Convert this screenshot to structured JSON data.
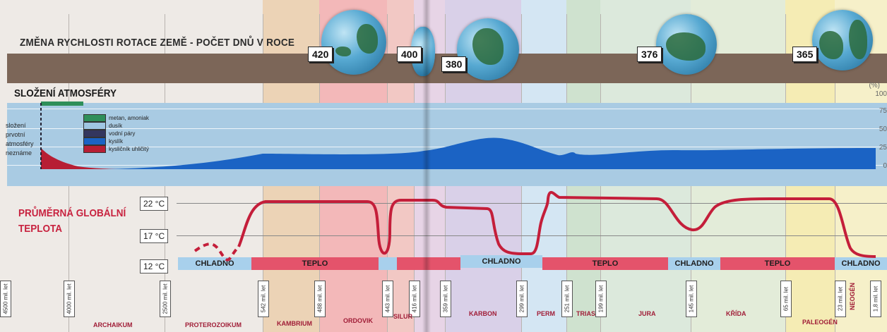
{
  "rotation": {
    "title": "ZMĚNA RYCHLOSTI ROTACE ZEMĚ - POČET DNŮ V ROCE",
    "values": [
      "420",
      "400",
      "380",
      "376",
      "365"
    ]
  },
  "atmosphere": {
    "title": "SLOŽENÍ ATMOSFÉRY",
    "unknown_lines": [
      "složení",
      "prvotní",
      "atmosféry",
      "neznáme"
    ],
    "legend": [
      {
        "label": "metan, amoniak",
        "color": "#2f8f5a"
      },
      {
        "label": "dusík",
        "color": "#9fc6e2"
      },
      {
        "label": "vodní páry",
        "color": "#33365e"
      },
      {
        "label": "kyslík",
        "color": "#1b63c4"
      },
      {
        "label": "kysličník uhličitý",
        "color": "#b71e34"
      }
    ],
    "scale_unit": "(%)",
    "scale": [
      "100",
      "75",
      "50",
      "25",
      "0"
    ]
  },
  "temperature": {
    "title_line1": "PRŮMĚRNÁ GLOBÁLNÍ",
    "title_line2": "TEPLOTA",
    "levels": [
      "22 °C",
      "17 °C",
      "12 °C"
    ],
    "segments": [
      {
        "label": "CHLADNO",
        "kind": "cold"
      },
      {
        "label": "TEPLO",
        "kind": "warm"
      },
      {
        "label": "",
        "kind": "cold"
      },
      {
        "label": "",
        "kind": "warm"
      },
      {
        "label": "CHLADNO",
        "kind": "cold"
      },
      {
        "label": "TEPLO",
        "kind": "warm"
      },
      {
        "label": "CHLADNO",
        "kind": "cold"
      },
      {
        "label": "TEPLO",
        "kind": "warm"
      },
      {
        "label": "CHLADNO",
        "kind": "cold"
      }
    ]
  },
  "timeline": {
    "markers": [
      "4500 mil. let",
      "4000 mil. let",
      "2500 mil. let",
      "542 mil. let",
      "488 mil. let",
      "443 mil. let",
      "416 mil. let",
      "359 mil. let",
      "299 mil. let",
      "251 mil. let",
      "199 mil. let",
      "145 mil. let",
      "65 mil. let",
      "23 mil. let",
      "1,8 mil. let"
    ],
    "periods": [
      "ARCHAIKUM",
      "PROTEROZOIKUM",
      "KAMBRIUM",
      "ORDOVIK",
      "SILUR",
      "KARBON",
      "PERM",
      "TRIAS",
      "JURA",
      "KŘÍDA",
      "PALEOGÉN",
      "NEOGÉN"
    ]
  },
  "colors": {
    "warm": "#e4536b",
    "cold": "#a8d0ec",
    "temp_curve": "#c41e3a",
    "oxygen": "#1b63c4",
    "co2": "#b71e34"
  }
}
